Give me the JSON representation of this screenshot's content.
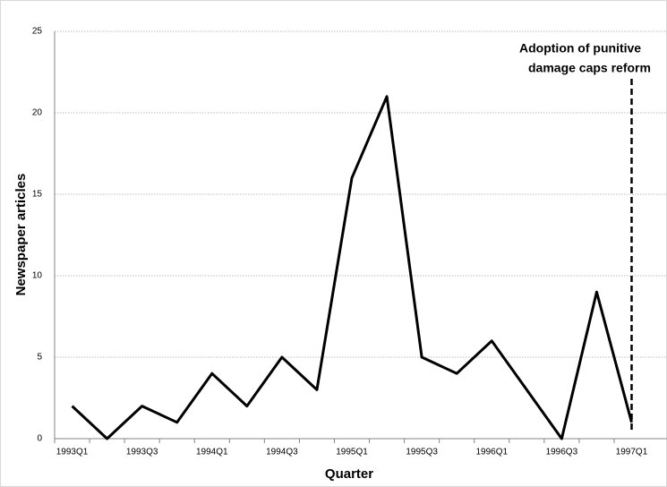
{
  "chart_data": {
    "type": "line",
    "x_label": "Quarter",
    "y_label": "Newspaper articles",
    "categories": [
      "1993Q1",
      null,
      "1993Q3",
      null,
      "1994Q1",
      null,
      "1994Q3",
      null,
      "1995Q1",
      null,
      "1995Q3",
      null,
      "1996Q1",
      null,
      "1996Q3",
      null,
      "1997Q1"
    ],
    "values": [
      2,
      0,
      2,
      1,
      4,
      2,
      5,
      3,
      16,
      21,
      5,
      4,
      6,
      3,
      0,
      9,
      1
    ],
    "color": "#000000",
    "ylim": [
      0,
      25
    ],
    "yticks": [
      0,
      5,
      10,
      15,
      20,
      25
    ],
    "grid": true,
    "event_category": "1997Q1",
    "annotation": [
      "Adoption of punitive",
      "damage caps reform"
    ]
  }
}
